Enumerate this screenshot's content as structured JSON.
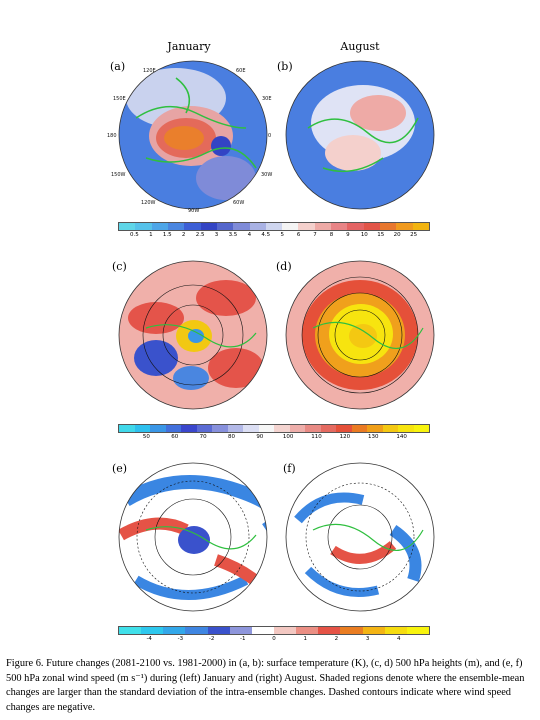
{
  "columns": {
    "left": "January",
    "right": "August"
  },
  "panels": [
    "(a)",
    "(b)",
    "(c)",
    "(d)",
    "(e)",
    "(f)"
  ],
  "lon_labels": [
    "120E",
    "60E",
    "150E",
    "30E",
    "180",
    "0",
    "150W",
    "30W",
    "120W",
    "60W",
    "90W"
  ],
  "colorbar_temperature": [
    "0.5",
    "1",
    "1.5",
    "2",
    "2.5",
    "3",
    "3.5",
    "4",
    "4.5",
    "5",
    "6",
    "7",
    "8",
    "9",
    "10",
    "15",
    "20",
    "25"
  ],
  "colorbar_height": [
    "50",
    "60",
    "70",
    "80",
    "90",
    "100",
    "110",
    "120",
    "130",
    "140"
  ],
  "colorbar_wind": [
    "-4",
    "-3",
    "-2",
    "-1",
    "0",
    "1",
    "2",
    "3",
    "4"
  ],
  "colors": {
    "temperature_scale": [
      "#5fd6e8",
      "#56c2ea",
      "#4ea6e8",
      "#4a86e0",
      "#3d5fd6",
      "#3344c4",
      "#5466cc",
      "#7f8bd8",
      "#a9b2e4",
      "#cfd6ef",
      "#f4f4f4",
      "#f4d0cc",
      "#eeaaa6",
      "#e88486",
      "#e46464",
      "#e25548",
      "#e8772e",
      "#f09a1e",
      "#f2b410"
    ],
    "height_scale": [
      "#40d8ea",
      "#2ec0ee",
      "#3a96e6",
      "#4270dc",
      "#3a46cc",
      "#5b6bd4",
      "#8790dc",
      "#b3b9e8",
      "#dcdff4",
      "#f6f6f6",
      "#f4d4d0",
      "#eeaeaa",
      "#e88a84",
      "#e46a60",
      "#e55039",
      "#ea7a22",
      "#f09f18",
      "#f4c812",
      "#f7e40f",
      "#f8f40e"
    ],
    "wind_scale": [
      "#40e0ea",
      "#2ec8ee",
      "#33a8ea",
      "#3f86e2",
      "#3a52cc",
      "#8e96dc",
      "#ffffff",
      "#f3c8c2",
      "#eb8f84",
      "#e55346",
      "#ea7d22",
      "#f4b414",
      "#f6dc10",
      "#f8f40e"
    ],
    "continent_outline": "#2fbf3f"
  },
  "caption": {
    "text": "Figure 6. Future changes (2081-2100 vs. 1981-2000) in (a, b): surface temperature (K), (c, d) 500 hPa heights (m), and (e, f) 500 hPa zonal wind speed (m s⁻¹) during (left) January and (right) August. Shaded regions denote where the ensemble-mean changes are larger than the standard deviation of the intra-ensemble changes. Dashed contours indicate where wind speed changes are negative."
  }
}
